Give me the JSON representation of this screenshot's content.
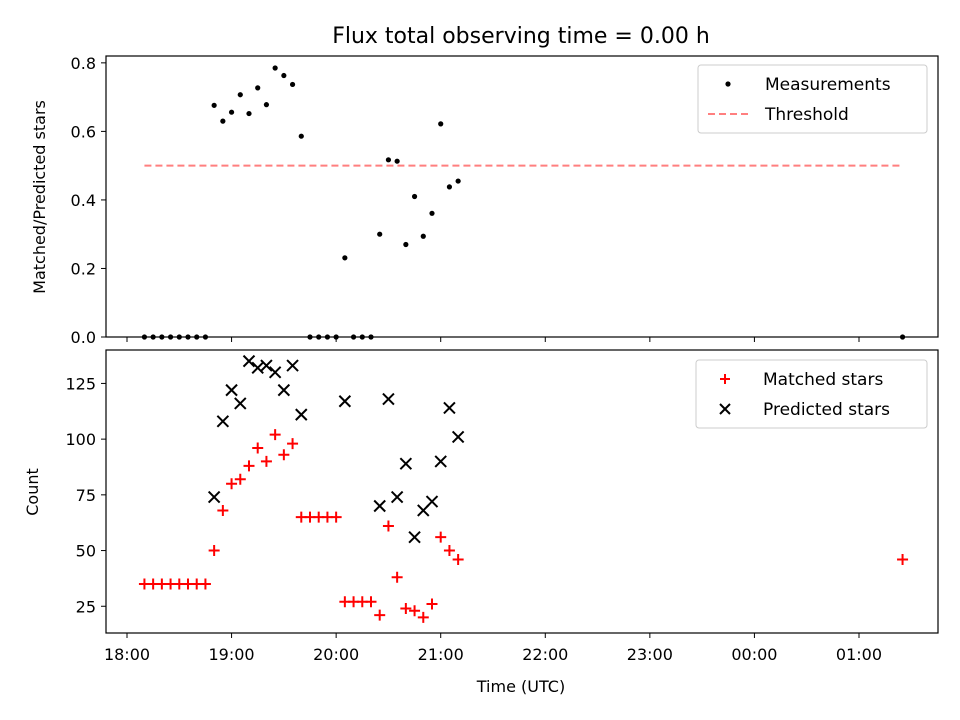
{
  "title": "Flux total observing time = 0.00 h",
  "xlabel": "Time (UTC)",
  "x_ticks": [
    "18:00",
    "19:00",
    "20:00",
    "21:00",
    "22:00",
    "23:00",
    "00:00",
    "01:00"
  ],
  "colors": {
    "measurements": "#000000",
    "threshold": "#ff7f7f",
    "matched": "#ff0000",
    "predicted": "#000000"
  },
  "chart_data": [
    {
      "type": "scatter",
      "ylabel": "Matched/Predicted stars",
      "ylim": [
        0,
        0.82
      ],
      "y_ticks": [
        "0.0",
        "0.2",
        "0.4",
        "0.6",
        "0.8"
      ],
      "legend_position": "top-right",
      "series": [
        {
          "name": "Measurements",
          "points": [
            [
              "18:10",
              0
            ],
            [
              "18:15",
              0
            ],
            [
              "18:20",
              0
            ],
            [
              "18:25",
              0
            ],
            [
              "18:30",
              0
            ],
            [
              "18:35",
              0
            ],
            [
              "18:40",
              0
            ],
            [
              "18:45",
              0
            ],
            [
              "18:50",
              0.676
            ],
            [
              "18:55",
              0.63
            ],
            [
              "19:00",
              0.656
            ],
            [
              "19:05",
              0.707
            ],
            [
              "19:10",
              0.652
            ],
            [
              "19:15",
              0.727
            ],
            [
              "19:20",
              0.678
            ],
            [
              "19:25",
              0.785
            ],
            [
              "19:30",
              0.763
            ],
            [
              "19:35",
              0.737
            ],
            [
              "19:40",
              0.586
            ],
            [
              "19:45",
              0
            ],
            [
              "19:50",
              0
            ],
            [
              "19:55",
              0
            ],
            [
              "20:00",
              0
            ],
            [
              "20:05",
              0.231
            ],
            [
              "20:10",
              0
            ],
            [
              "20:15",
              0
            ],
            [
              "20:20",
              0
            ],
            [
              "20:25",
              0.3
            ],
            [
              "20:30",
              0.517
            ],
            [
              "20:35",
              0.513
            ],
            [
              "20:40",
              0.27
            ],
            [
              "20:45",
              0.41
            ],
            [
              "20:50",
              0.294
            ],
            [
              "20:55",
              0.361
            ],
            [
              "21:00",
              0.622
            ],
            [
              "21:05",
              0.438
            ],
            [
              "21:10",
              0.455
            ],
            [
              "01:25",
              0
            ]
          ]
        },
        {
          "name": "Threshold",
          "line_from": "18:10",
          "line_to": "01:25",
          "value": 0.5
        }
      ]
    },
    {
      "type": "scatter",
      "ylabel": "Count",
      "ylim": [
        13,
        140
      ],
      "y_ticks": [
        "25",
        "50",
        "75",
        "100",
        "125"
      ],
      "legend_position": "top-right",
      "series": [
        {
          "name": "Matched stars",
          "points": [
            [
              "18:10",
              35
            ],
            [
              "18:15",
              35
            ],
            [
              "18:20",
              35
            ],
            [
              "18:25",
              35
            ],
            [
              "18:30",
              35
            ],
            [
              "18:35",
              35
            ],
            [
              "18:40",
              35
            ],
            [
              "18:45",
              35
            ],
            [
              "18:50",
              50
            ],
            [
              "18:55",
              68
            ],
            [
              "19:00",
              80
            ],
            [
              "19:05",
              82
            ],
            [
              "19:10",
              88
            ],
            [
              "19:15",
              96
            ],
            [
              "19:20",
              90
            ],
            [
              "19:25",
              102
            ],
            [
              "19:30",
              93
            ],
            [
              "19:35",
              98
            ],
            [
              "19:40",
              65
            ],
            [
              "19:45",
              65
            ],
            [
              "19:50",
              65
            ],
            [
              "19:55",
              65
            ],
            [
              "20:00",
              65
            ],
            [
              "20:05",
              27
            ],
            [
              "20:10",
              27
            ],
            [
              "20:15",
              27
            ],
            [
              "20:20",
              27
            ],
            [
              "20:25",
              21
            ],
            [
              "20:30",
              61
            ],
            [
              "20:35",
              38
            ],
            [
              "20:40",
              24
            ],
            [
              "20:45",
              23
            ],
            [
              "20:50",
              20
            ],
            [
              "20:55",
              26
            ],
            [
              "21:00",
              56
            ],
            [
              "21:05",
              50
            ],
            [
              "21:10",
              46
            ],
            [
              "01:25",
              46
            ]
          ]
        },
        {
          "name": "Predicted stars",
          "points": [
            [
              "18:50",
              74
            ],
            [
              "18:55",
              108
            ],
            [
              "19:00",
              122
            ],
            [
              "19:05",
              116
            ],
            [
              "19:10",
              135
            ],
            [
              "19:15",
              132
            ],
            [
              "19:20",
              133
            ],
            [
              "19:25",
              130
            ],
            [
              "19:30",
              122
            ],
            [
              "19:35",
              133
            ],
            [
              "19:40",
              111
            ],
            [
              "20:05",
              117
            ],
            [
              "20:25",
              70
            ],
            [
              "20:30",
              118
            ],
            [
              "20:35",
              74
            ],
            [
              "20:40",
              89
            ],
            [
              "20:45",
              56
            ],
            [
              "20:50",
              68
            ],
            [
              "20:55",
              72
            ],
            [
              "21:00",
              90
            ],
            [
              "21:05",
              114
            ],
            [
              "21:10",
              101
            ]
          ]
        }
      ]
    }
  ]
}
